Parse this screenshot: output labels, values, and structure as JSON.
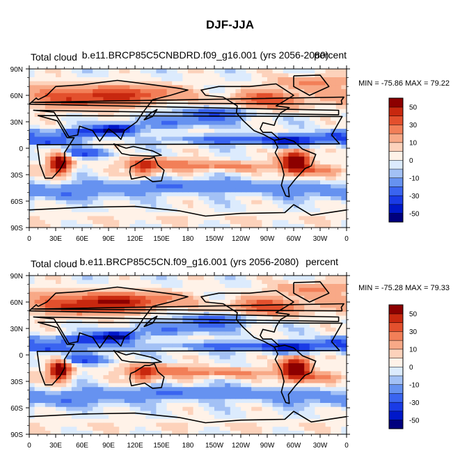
{
  "figure_title": "DJF-JJA",
  "colors": {
    "levels": [
      -50,
      -40,
      -30,
      -20,
      -10,
      -5,
      0,
      5,
      10,
      20,
      30,
      40,
      50
    ],
    "palette": [
      "#00007e",
      "#0018c9",
      "#1a3be6",
      "#3a64f0",
      "#6692f0",
      "#a3c1f5",
      "#dcebfd",
      "#fff2e8",
      "#fdd2bb",
      "#f8a987",
      "#f27f58",
      "#e3502d",
      "#c8280f",
      "#8c0000"
    ],
    "coast": "#000000"
  },
  "chart_data": [
    {
      "type": "heatmap",
      "title_left": "Total cloud",
      "title_center": "b.e11.BRCP85C5CNBDRD.f09_g16.001 (yrs 2056-2080)",
      "title_right": "percent",
      "min_max_text": "MIN = -75.86 MAX =  79.22",
      "min": -75.86,
      "max": 79.22,
      "lon_range": [
        0,
        360
      ],
      "lat_range": [
        -90,
        90
      ]
    },
    {
      "type": "heatmap",
      "title_left": "Total cloud",
      "title_center": "b.e11.BRCP85C5CN.f09_g16.001 (yrs 2056-2080)",
      "title_right": "percent",
      "min_max_text": "MIN = -75.28 MAX =  79.33",
      "min": -75.28,
      "max": 79.33,
      "lon_range": [
        0,
        360
      ],
      "lat_range": [
        -90,
        90
      ]
    }
  ],
  "x_tick_labels": [
    "0",
    "30E",
    "60E",
    "90E",
    "120E",
    "150E",
    "180",
    "150W",
    "120W",
    "90W",
    "60W",
    "30W",
    "0"
  ],
  "y_tick_labels": [
    "90S",
    "60S",
    "30S",
    "0",
    "30N",
    "60N",
    "90N"
  ],
  "colorbar_labels": [
    "-50",
    "-30",
    "-10",
    "0",
    "10",
    "30",
    "50"
  ]
}
